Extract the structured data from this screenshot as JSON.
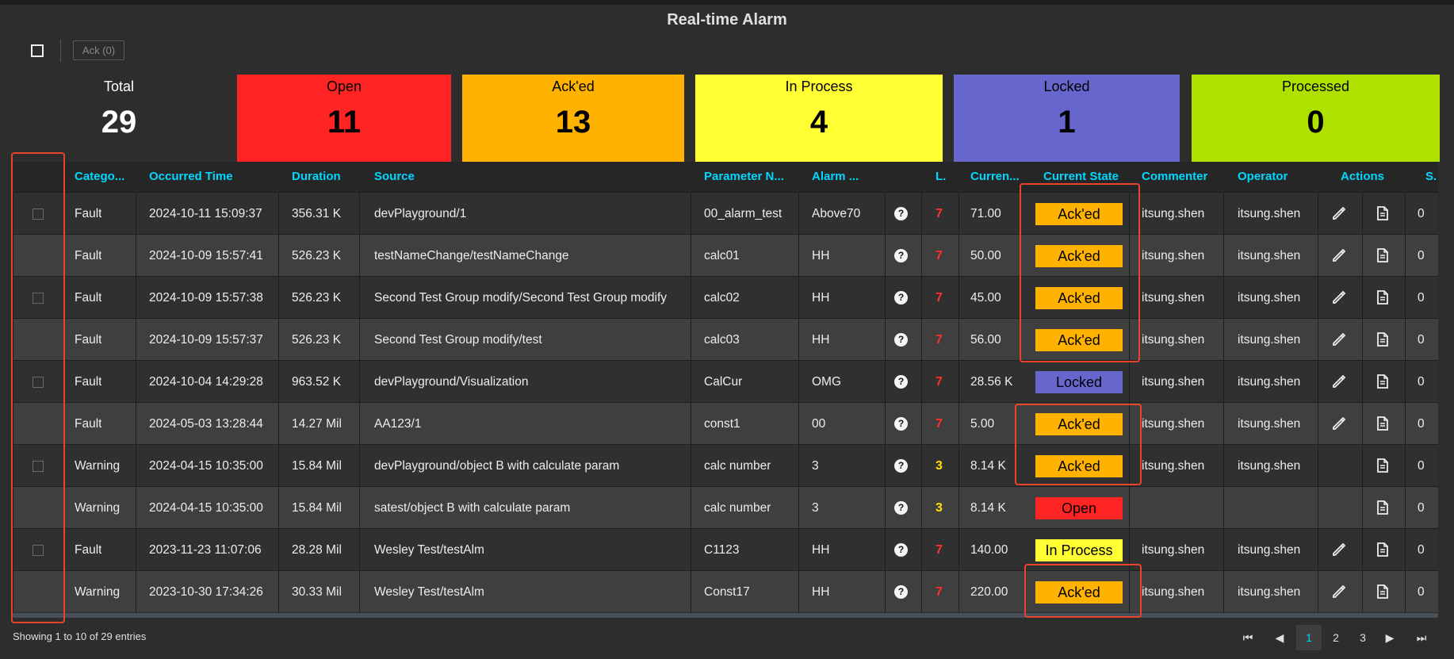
{
  "title": "Real-time Alarm",
  "toolbar": {
    "ack_label": "Ack (0)"
  },
  "summary": [
    {
      "label": "Total",
      "count": "29",
      "color": "#2d2d2d"
    },
    {
      "label": "Open",
      "count": "11",
      "color": "#ff2424"
    },
    {
      "label": "Ack'ed",
      "count": "13",
      "color": "#ffb300"
    },
    {
      "label": "In Process",
      "count": "4",
      "color": "#ffff33"
    },
    {
      "label": "Locked",
      "count": "1",
      "color": "#6666cc"
    },
    {
      "label": "Processed",
      "count": "0",
      "color": "#aee000"
    }
  ],
  "columns": [
    "Catego...",
    "Occurred Time",
    "Duration",
    "Source",
    "Parameter N...",
    "Alarm ...",
    "L.",
    "Curren...",
    "Current State",
    "Commenter",
    "Operator",
    "Actions",
    "S."
  ],
  "rows": [
    {
      "category": "Fault",
      "time": "2024-10-11 15:09:37",
      "duration": "356.31 K",
      "source": "devPlayground/1",
      "param": "00_alarm_test",
      "alarm": "Above70",
      "level": "7",
      "current": "71.00",
      "state": "Ack'ed",
      "commenter": "itsung.shen",
      "operator": "itsung.shen",
      "s": "0"
    },
    {
      "category": "Fault",
      "time": "2024-10-09 15:57:41",
      "duration": "526.23 K",
      "source": "testNameChange/testNameChange",
      "param": "calc01",
      "alarm": "HH",
      "level": "7",
      "current": "50.00",
      "state": "Ack'ed",
      "commenter": "itsung.shen",
      "operator": "itsung.shen",
      "s": "0"
    },
    {
      "category": "Fault",
      "time": "2024-10-09 15:57:38",
      "duration": "526.23 K",
      "source": "Second Test Group modify/Second Test Group modify",
      "param": "calc02",
      "alarm": "HH",
      "level": "7",
      "current": "45.00",
      "state": "Ack'ed",
      "commenter": "itsung.shen",
      "operator": "itsung.shen",
      "s": "0"
    },
    {
      "category": "Fault",
      "time": "2024-10-09 15:57:37",
      "duration": "526.23 K",
      "source": "Second Test Group modify/test",
      "param": "calc03",
      "alarm": "HH",
      "level": "7",
      "current": "56.00",
      "state": "Ack'ed",
      "commenter": "itsung.shen",
      "operator": "itsung.shen",
      "s": "0"
    },
    {
      "category": "Fault",
      "time": "2024-10-04 14:29:28",
      "duration": "963.52 K",
      "source": "devPlayground/Visualization",
      "param": "CalCur",
      "alarm": "OMG",
      "level": "7",
      "current": "28.56 K",
      "state": "Locked",
      "commenter": "itsung.shen",
      "operator": "itsung.shen",
      "s": "0"
    },
    {
      "category": "Fault",
      "time": "2024-05-03 13:28:44",
      "duration": "14.27 Mil",
      "source": "AA123/1",
      "param": "const1",
      "alarm": "00",
      "level": "7",
      "current": "5.00",
      "state": "Ack'ed",
      "commenter": "itsung.shen",
      "operator": "itsung.shen",
      "s": "0"
    },
    {
      "category": "Warning",
      "time": "2024-04-15 10:35:00",
      "duration": "15.84 Mil",
      "source": "devPlayground/object B with calculate param",
      "param": "calc number",
      "alarm": "3",
      "level": "3",
      "current": "8.14 K",
      "state": "Ack'ed",
      "commenter": "itsung.shen",
      "operator": "itsung.shen",
      "s": "0"
    },
    {
      "category": "Warning",
      "time": "2024-04-15 10:35:00",
      "duration": "15.84 Mil",
      "source": "satest/object B with calculate param",
      "param": "calc number",
      "alarm": "3",
      "level": "3",
      "current": "8.14 K",
      "state": "Open",
      "commenter": "",
      "operator": "",
      "s": "0"
    },
    {
      "category": "Fault",
      "time": "2023-11-23 11:07:06",
      "duration": "28.28 Mil",
      "source": "Wesley Test/testAlm",
      "param": "C1123",
      "alarm": "HH",
      "level": "7",
      "current": "140.00",
      "state": "In Process",
      "commenter": "itsung.shen",
      "operator": "itsung.shen",
      "s": "0"
    },
    {
      "category": "Warning",
      "time": "2023-10-30 17:34:26",
      "duration": "30.33 Mil",
      "source": "Wesley Test/testAlm",
      "param": "Const17",
      "alarm": "HH",
      "level": "7",
      "current": "220.00",
      "state": "Ack'ed",
      "commenter": "itsung.shen",
      "operator": "itsung.shen",
      "s": "0"
    }
  ],
  "state_colors": {
    "Ack'ed": "#ffb300",
    "Locked": "#6666cc",
    "Open": "#ff2424",
    "In Process": "#ffff33"
  },
  "level_colors": {
    "7": "#ff3030",
    "3": "#ffe000"
  },
  "footer": {
    "info": "Showing 1 to 10 of 29 entries"
  },
  "pager": {
    "pages": [
      "1",
      "2",
      "3"
    ],
    "current": "1"
  }
}
